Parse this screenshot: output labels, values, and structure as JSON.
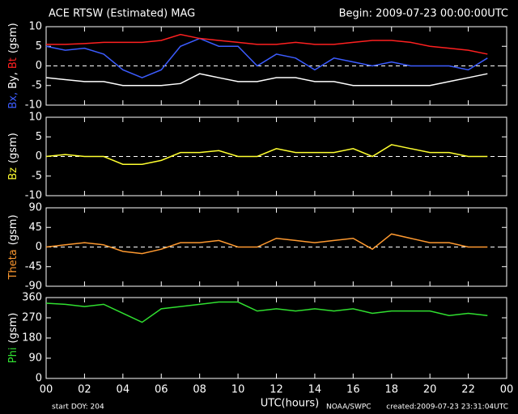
{
  "title": "ACE RTSW (Estimated) MAG",
  "begin": "Begin: 2009-07-23 00:00:00UTC",
  "start_doy": "start DOY:  204",
  "source": "NOAA/SWPC",
  "created": "created:2009-07-23 23:31:04UTC",
  "time": {
    "xlabel": "UTC(hours)",
    "xlim": [
      0,
      24
    ],
    "xticks": [
      {
        "value": 0,
        "label": "00"
      },
      {
        "value": 2,
        "label": "02"
      },
      {
        "value": 4,
        "label": "04"
      },
      {
        "value": 6,
        "label": "06"
      },
      {
        "value": 8,
        "label": "08"
      },
      10,
      12,
      14,
      16,
      18,
      20,
      22,
      {
        "value": 24,
        "label": "00"
      }
    ]
  },
  "chart_data": [
    {
      "type": "line",
      "ylabel": "(gsm)",
      "zero_line": true,
      "ylim": [
        -10,
        10
      ],
      "yticks": [
        -10,
        -5,
        0,
        5,
        10
      ],
      "x": [
        0,
        1,
        2,
        3,
        4,
        5,
        6,
        7,
        8,
        9,
        10,
        11,
        12,
        13,
        14,
        15,
        16,
        17,
        18,
        19,
        20,
        21,
        22,
        23
      ],
      "series": [
        {
          "name": "Bx,",
          "color": "#3c5cff",
          "values": [
            5,
            4,
            4.5,
            3,
            -1,
            -3,
            -1,
            5,
            7,
            5,
            5,
            0,
            3,
            2,
            -1,
            2,
            1,
            0,
            1,
            0,
            0,
            0,
            -1,
            2
          ]
        },
        {
          "name": "By,",
          "color": "#ffffff",
          "values": [
            -3,
            -3.5,
            -4,
            -4,
            -5,
            -5,
            -5,
            -4.5,
            -2,
            -3,
            -4,
            -4,
            -3,
            -3,
            -4,
            -4,
            -5,
            -5,
            -5,
            -5,
            -5,
            -4,
            -3,
            -2
          ]
        },
        {
          "name": "Bt",
          "color": "#ff2020",
          "values": [
            5.5,
            5.5,
            5.7,
            6,
            6,
            6,
            6.5,
            8,
            7,
            6.5,
            6,
            5.5,
            5.5,
            6,
            5.5,
            5.5,
            6,
            6.5,
            6.5,
            6,
            5,
            4.5,
            4,
            3
          ]
        }
      ]
    },
    {
      "type": "line",
      "ylabel": "(gsm)",
      "zero_line": true,
      "ylim": [
        -10,
        10
      ],
      "yticks": [
        -10,
        -5,
        0,
        5,
        10
      ],
      "x": [
        0,
        1,
        2,
        3,
        4,
        5,
        6,
        7,
        8,
        9,
        10,
        11,
        12,
        13,
        14,
        15,
        16,
        17,
        18,
        19,
        20,
        21,
        22,
        23
      ],
      "series": [
        {
          "name": "Bz",
          "color": "#ffff30",
          "values": [
            0,
            0.5,
            0,
            0,
            -2,
            -2,
            -1,
            1,
            1,
            1.5,
            0,
            0,
            2,
            1,
            1,
            1,
            2,
            0,
            3,
            2,
            1,
            1,
            0,
            0
          ]
        }
      ]
    },
    {
      "type": "line",
      "ylabel": "(gsm)",
      "zero_line": true,
      "ylim": [
        -90,
        90
      ],
      "yticks": [
        -90,
        -45,
        0,
        45,
        90
      ],
      "x": [
        0,
        1,
        2,
        3,
        4,
        5,
        6,
        7,
        8,
        9,
        10,
        11,
        12,
        13,
        14,
        15,
        16,
        17,
        18,
        19,
        20,
        21,
        22,
        23
      ],
      "series": [
        {
          "name": "Theta",
          "color": "#ff9a30",
          "values": [
            0,
            5,
            10,
            5,
            -10,
            -15,
            -5,
            10,
            10,
            15,
            0,
            0,
            20,
            15,
            10,
            15,
            20,
            -5,
            30,
            20,
            10,
            10,
            0,
            0
          ]
        }
      ]
    },
    {
      "type": "line",
      "ylabel": "(gsm)",
      "zero_line": false,
      "ylim": [
        0,
        360
      ],
      "yticks": [
        0,
        90,
        180,
        270,
        360
      ],
      "x": [
        0,
        1,
        2,
        3,
        4,
        5,
        6,
        7,
        8,
        9,
        10,
        11,
        12,
        13,
        14,
        15,
        16,
        17,
        18,
        19,
        20,
        21,
        22,
        23
      ],
      "series": [
        {
          "name": "Phi",
          "color": "#30e030",
          "values": [
            335,
            330,
            320,
            330,
            290,
            250,
            310,
            320,
            330,
            340,
            340,
            300,
            310,
            300,
            310,
            300,
            310,
            290,
            300,
            300,
            300,
            280,
            290,
            280
          ]
        }
      ]
    }
  ]
}
